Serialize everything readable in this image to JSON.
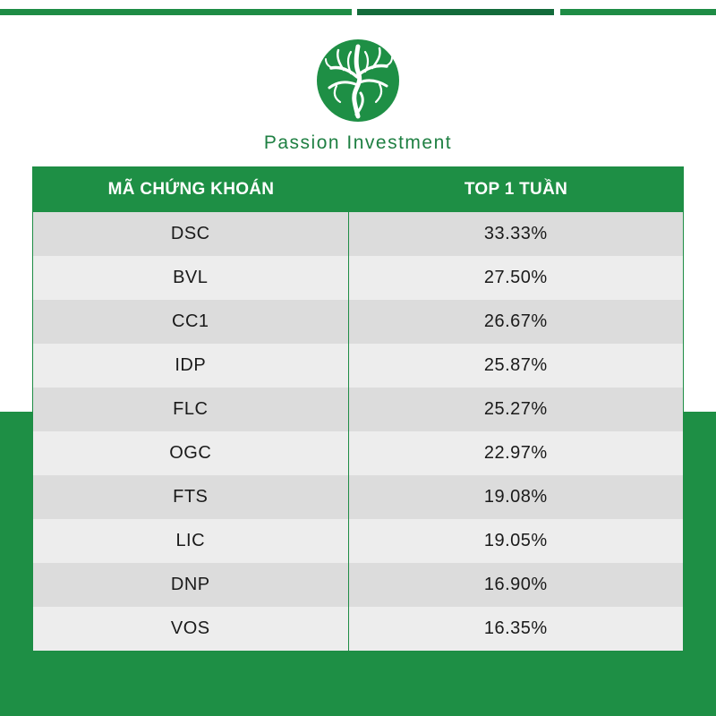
{
  "brand": {
    "name": "Passion Investment",
    "logo_icon": "tree-logo-icon",
    "color": "#1e8f45"
  },
  "table": {
    "headers": [
      "MÃ CHỨNG KHOÁN",
      "TOP 1 TUẦN"
    ],
    "rows": [
      {
        "ticker": "DSC",
        "value": "33.33%"
      },
      {
        "ticker": "BVL",
        "value": "27.50%"
      },
      {
        "ticker": "CC1",
        "value": "26.67%"
      },
      {
        "ticker": "IDP",
        "value": "25.87%"
      },
      {
        "ticker": "FLC",
        "value": "25.27%"
      },
      {
        "ticker": "OGC",
        "value": "22.97%"
      },
      {
        "ticker": "FTS",
        "value": "19.08%"
      },
      {
        "ticker": "LIC",
        "value": "19.05%"
      },
      {
        "ticker": "DNP",
        "value": "16.90%"
      },
      {
        "ticker": "VOS",
        "value": "16.35%"
      }
    ]
  }
}
